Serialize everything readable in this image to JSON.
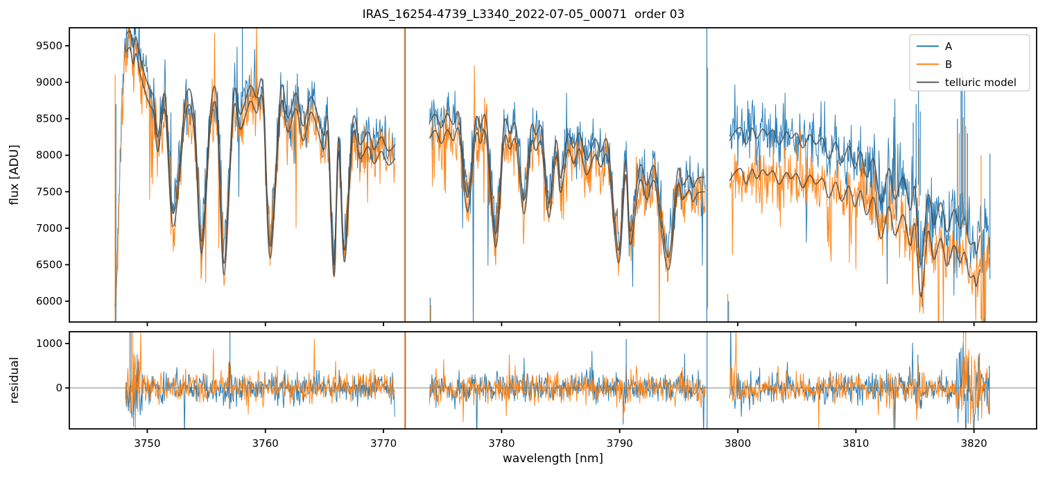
{
  "chart_data": {
    "type": "line",
    "title": "IRAS_16254-4739_L3340_2022-07-05_00071  order 03",
    "xlabel": "wavelength [nm]",
    "grid": false,
    "legend_position": "upper right",
    "legend": [
      {
        "label": "A",
        "color": "#1f77b4"
      },
      {
        "label": "B",
        "color": "#ff7f0e"
      },
      {
        "label": "telluric model",
        "color": "#5a5a5a"
      }
    ],
    "panels": [
      {
        "name": "flux",
        "ylabel": "flux [ADU]",
        "ylim": [
          5715,
          9747
        ],
        "yticks": [
          6000,
          6500,
          7000,
          7500,
          8000,
          8500,
          9000,
          9500
        ],
        "xlim": [
          3743.4,
          3825.3
        ],
        "xticks": [
          3750,
          3760,
          3770,
          3780,
          3790,
          3800,
          3810,
          3820
        ]
      },
      {
        "name": "residual",
        "ylabel": "residual",
        "ylim": [
          -922,
          1266
        ],
        "yticks": [
          0,
          1000
        ],
        "xlim": [
          3743.4,
          3825.3
        ],
        "xticks": [
          3750,
          3760,
          3770,
          3780,
          3790,
          3800,
          3810,
          3820
        ]
      }
    ],
    "model_color": "#4a4a4a",
    "zero_line_color": "#808080",
    "segments": [
      {
        "name": "order-chunk-1",
        "xrange": [
          3747.25,
          3771.0
        ],
        "lead_in": [
          [
            3747.25,
            5750
          ],
          [
            3747.5,
            6900
          ],
          [
            3747.8,
            8500
          ],
          [
            3748.0,
            9200
          ]
        ],
        "model_A": [
          [
            3748.2,
            9650
          ],
          [
            3748.55,
            9700
          ],
          [
            3748.8,
            9480
          ],
          [
            3749.05,
            9620
          ],
          [
            3749.35,
            9380
          ],
          [
            3749.7,
            9150
          ],
          [
            3750.2,
            8900
          ],
          [
            3750.55,
            8780
          ],
          [
            3750.9,
            8250
          ],
          [
            3751.5,
            8820
          ],
          [
            3752.2,
            7200
          ],
          [
            3753.3,
            8820
          ],
          [
            3754.0,
            8500
          ],
          [
            3754.6,
            6820
          ],
          [
            3755.35,
            8620
          ],
          [
            3755.9,
            8750
          ],
          [
            3756.5,
            6520
          ],
          [
            3757.3,
            8820
          ],
          [
            3757.9,
            8560
          ],
          [
            3758.7,
            8950
          ],
          [
            3759.25,
            8790
          ],
          [
            3759.8,
            8930
          ],
          [
            3760.4,
            6750
          ],
          [
            3761.3,
            8890
          ],
          [
            3761.9,
            8520
          ],
          [
            3762.6,
            8850
          ],
          [
            3763.2,
            8400
          ],
          [
            3763.9,
            8800
          ],
          [
            3764.9,
            8280
          ],
          [
            3765.3,
            8450
          ],
          [
            3765.8,
            6500
          ],
          [
            3766.2,
            8250
          ],
          [
            3766.7,
            6700
          ],
          [
            3767.4,
            8480
          ],
          [
            3768.0,
            8150
          ],
          [
            3768.7,
            8320
          ],
          [
            3769.2,
            8080
          ],
          [
            3769.8,
            8250
          ],
          [
            3770.4,
            8060
          ],
          [
            3771.0,
            8150
          ]
        ],
        "gap_frac": 0.024,
        "noise": {
          "sigma_A": 185,
          "sigma_B": 185,
          "p_down": 0.05,
          "down_scale": 420,
          "p_up": 0.022,
          "up_scale": 220
        },
        "up_windows": [
          {
            "range": [
              3756.5,
              3759.3
            ],
            "trace": "A",
            "p": 0.09,
            "amp": 520
          }
        ]
      },
      {
        "name": "order-chunk-2",
        "xrange": [
          3773.9,
          3797.3
        ],
        "lead_in": [],
        "model_A": [
          [
            3773.9,
            8450
          ],
          [
            3774.4,
            8560
          ],
          [
            3774.9,
            8380
          ],
          [
            3775.4,
            8570
          ],
          [
            3775.9,
            8420
          ],
          [
            3776.4,
            8550
          ],
          [
            3777.1,
            7420
          ],
          [
            3777.8,
            8480
          ],
          [
            3778.2,
            8380
          ],
          [
            3778.7,
            8470
          ],
          [
            3779.5,
            6920
          ],
          [
            3780.2,
            8420
          ],
          [
            3780.7,
            8300
          ],
          [
            3781.2,
            8400
          ],
          [
            3781.9,
            7390
          ],
          [
            3782.5,
            8380
          ],
          [
            3782.9,
            8280
          ],
          [
            3783.4,
            8360
          ],
          [
            3784.0,
            7340
          ],
          [
            3784.6,
            8200
          ],
          [
            3785.0,
            7690
          ],
          [
            3785.6,
            8280
          ],
          [
            3786.1,
            8100
          ],
          [
            3786.6,
            8300
          ],
          [
            3787.2,
            7940
          ],
          [
            3787.9,
            8220
          ],
          [
            3788.4,
            8050
          ],
          [
            3789.0,
            8150
          ],
          [
            3789.9,
            6700
          ],
          [
            3790.5,
            7940
          ],
          [
            3790.9,
            6960
          ],
          [
            3791.7,
            7850
          ],
          [
            3792.3,
            7590
          ],
          [
            3793.0,
            7820
          ],
          [
            3794.1,
            6600
          ],
          [
            3794.9,
            7780
          ],
          [
            3795.3,
            7590
          ],
          [
            3795.9,
            7720
          ],
          [
            3796.2,
            7560
          ],
          [
            3796.6,
            7680
          ],
          [
            3797.2,
            7700
          ]
        ],
        "gap_frac": 0.026,
        "noise": {
          "sigma_A": 175,
          "sigma_B": 175,
          "p_down": 0.05,
          "down_scale": 420,
          "p_up": 0.02,
          "up_scale": 220
        },
        "up_windows": []
      },
      {
        "name": "order-chunk-3",
        "xrange": [
          3799.3,
          3821.35
        ],
        "lead_in": [],
        "model_A": [
          [
            3799.3,
            8200
          ],
          [
            3799.8,
            8330
          ],
          [
            3800.3,
            8370
          ],
          [
            3800.7,
            8150
          ],
          [
            3801.2,
            8370
          ],
          [
            3801.6,
            8230
          ],
          [
            3802.1,
            8360
          ],
          [
            3802.5,
            8280
          ],
          [
            3803.0,
            8340
          ],
          [
            3803.5,
            8150
          ],
          [
            3804.1,
            8320
          ],
          [
            3804.5,
            8230
          ],
          [
            3805.0,
            8300
          ],
          [
            3805.5,
            8100
          ],
          [
            3806.1,
            8280
          ],
          [
            3806.6,
            8150
          ],
          [
            3807.2,
            8230
          ],
          [
            3807.7,
            7950
          ],
          [
            3808.3,
            8180
          ],
          [
            3808.8,
            7900
          ],
          [
            3809.4,
            8120
          ],
          [
            3809.9,
            7820
          ],
          [
            3810.4,
            8050
          ],
          [
            3810.9,
            7700
          ],
          [
            3811.5,
            7950
          ],
          [
            3812.1,
            7350
          ],
          [
            3812.8,
            7820
          ],
          [
            3813.3,
            7400
          ],
          [
            3814.0,
            7700
          ],
          [
            3814.6,
            7250
          ],
          [
            3815.0,
            7550
          ],
          [
            3815.5,
            6500
          ],
          [
            3816.1,
            7450
          ],
          [
            3816.6,
            7050
          ],
          [
            3817.2,
            7350
          ],
          [
            3817.7,
            6950
          ],
          [
            3818.3,
            7250
          ],
          [
            3818.8,
            7000
          ],
          [
            3819.2,
            7150
          ],
          [
            3819.6,
            6800
          ],
          [
            3820.0,
            6800
          ],
          [
            3820.2,
            6650
          ],
          [
            3820.5,
            6900
          ]
        ],
        "gap_frac": 0.067,
        "noise": {
          "sigma_A": 215,
          "sigma_B": 195,
          "p_down": 0.06,
          "down_scale": 450,
          "p_up": 0.035,
          "up_scale": 260
        },
        "up_windows": [
          {
            "range": [
              3812.3,
              3815.6
            ],
            "trace": "A",
            "p": 0.1,
            "amp": 500
          }
        ]
      }
    ],
    "flux_spikes": [
      [
        3747.28,
        "B",
        5715,
        9100
      ],
      [
        3747.34,
        "A",
        5715,
        8700
      ],
      [
        3758.05,
        "A",
        8800,
        9750
      ],
      [
        3771.78,
        "B",
        5715,
        9750
      ],
      [
        3771.84,
        "A",
        5715,
        9750
      ],
      [
        3773.95,
        "A",
        5715,
        6050
      ],
      [
        3774.0,
        "B",
        5715,
        5950
      ],
      [
        3797.38,
        "A",
        5715,
        9750
      ],
      [
        3797.45,
        "B",
        5900,
        9200
      ],
      [
        3799.15,
        "B",
        5715,
        6100
      ],
      [
        3799.22,
        "A",
        5715,
        6000
      ],
      [
        3814.85,
        "A",
        7500,
        8450
      ],
      [
        3815.1,
        "A",
        7550,
        8700
      ],
      [
        3815.3,
        "A",
        7600,
        8880
      ],
      [
        3815.45,
        "A",
        7450,
        8600
      ],
      [
        3815.35,
        "B",
        7300,
        8230
      ],
      [
        3818.6,
        "A",
        7100,
        8500
      ],
      [
        3818.75,
        "B",
        7000,
        8300
      ],
      [
        3818.9,
        "A",
        7150,
        9000
      ],
      [
        3819.0,
        "A",
        7200,
        9150
      ],
      [
        3819.08,
        "B",
        7000,
        8520
      ],
      [
        3819.2,
        "A",
        7100,
        8900
      ],
      [
        3819.3,
        "B",
        6900,
        8400
      ],
      [
        3819.45,
        "A",
        6900,
        8300
      ],
      [
        3820.6,
        "B",
        5750,
        8000
      ],
      [
        3821.35,
        "A",
        6300,
        8020
      ]
    ],
    "residual": {
      "sigma": 200,
      "p_tail": 0.035,
      "tail_scale": 280,
      "segments": [
        [
          3748.15,
          3771.0
        ],
        [
          3773.9,
          3797.3
        ],
        [
          3799.3,
          3821.35
        ]
      ],
      "bursts": [
        {
          "range": [
            3748.15,
            3749.6
          ],
          "sigma": 550
        },
        {
          "range": [
            3756.8,
            3757.2
          ],
          "sigma": 420
        },
        {
          "range": [
            3770.5,
            3771.0
          ],
          "sigma": 300
        },
        {
          "range": [
            3774.0,
            3774.5
          ],
          "sigma": 280
        },
        {
          "range": [
            3790.3,
            3790.8
          ],
          "sigma": 380
        },
        {
          "range": [
            3799.3,
            3800.2
          ],
          "sigma": 300
        },
        {
          "range": [
            3814.9,
            3815.7
          ],
          "sigma": 350
        },
        {
          "range": [
            3818.5,
            3820.7
          ],
          "sigma": 550
        },
        {
          "range": [
            3821.0,
            3821.35
          ],
          "sigma": 380
        }
      ],
      "spikes": [
        [
          3748.5,
          "B",
          0,
          1270
        ],
        [
          3748.62,
          "A",
          0,
          1270
        ],
        [
          3748.75,
          "B",
          -500,
          1270
        ],
        [
          3749.0,
          "B",
          -930,
          300
        ],
        [
          3757.0,
          "A",
          0,
          1270
        ],
        [
          3771.8,
          "B",
          -930,
          1270
        ],
        [
          3771.86,
          "A",
          -930,
          1270
        ],
        [
          3790.55,
          "A",
          0,
          1100
        ],
        [
          3797.4,
          "A",
          -930,
          1270
        ],
        [
          3815.25,
          "A",
          0,
          750
        ],
        [
          3818.9,
          "A",
          0,
          900
        ],
        [
          3819.1,
          "B",
          -400,
          1270
        ],
        [
          3819.3,
          "B",
          0,
          1270
        ],
        [
          3819.5,
          "A",
          -800,
          600
        ],
        [
          3821.3,
          "A",
          -600,
          500
        ]
      ]
    }
  }
}
